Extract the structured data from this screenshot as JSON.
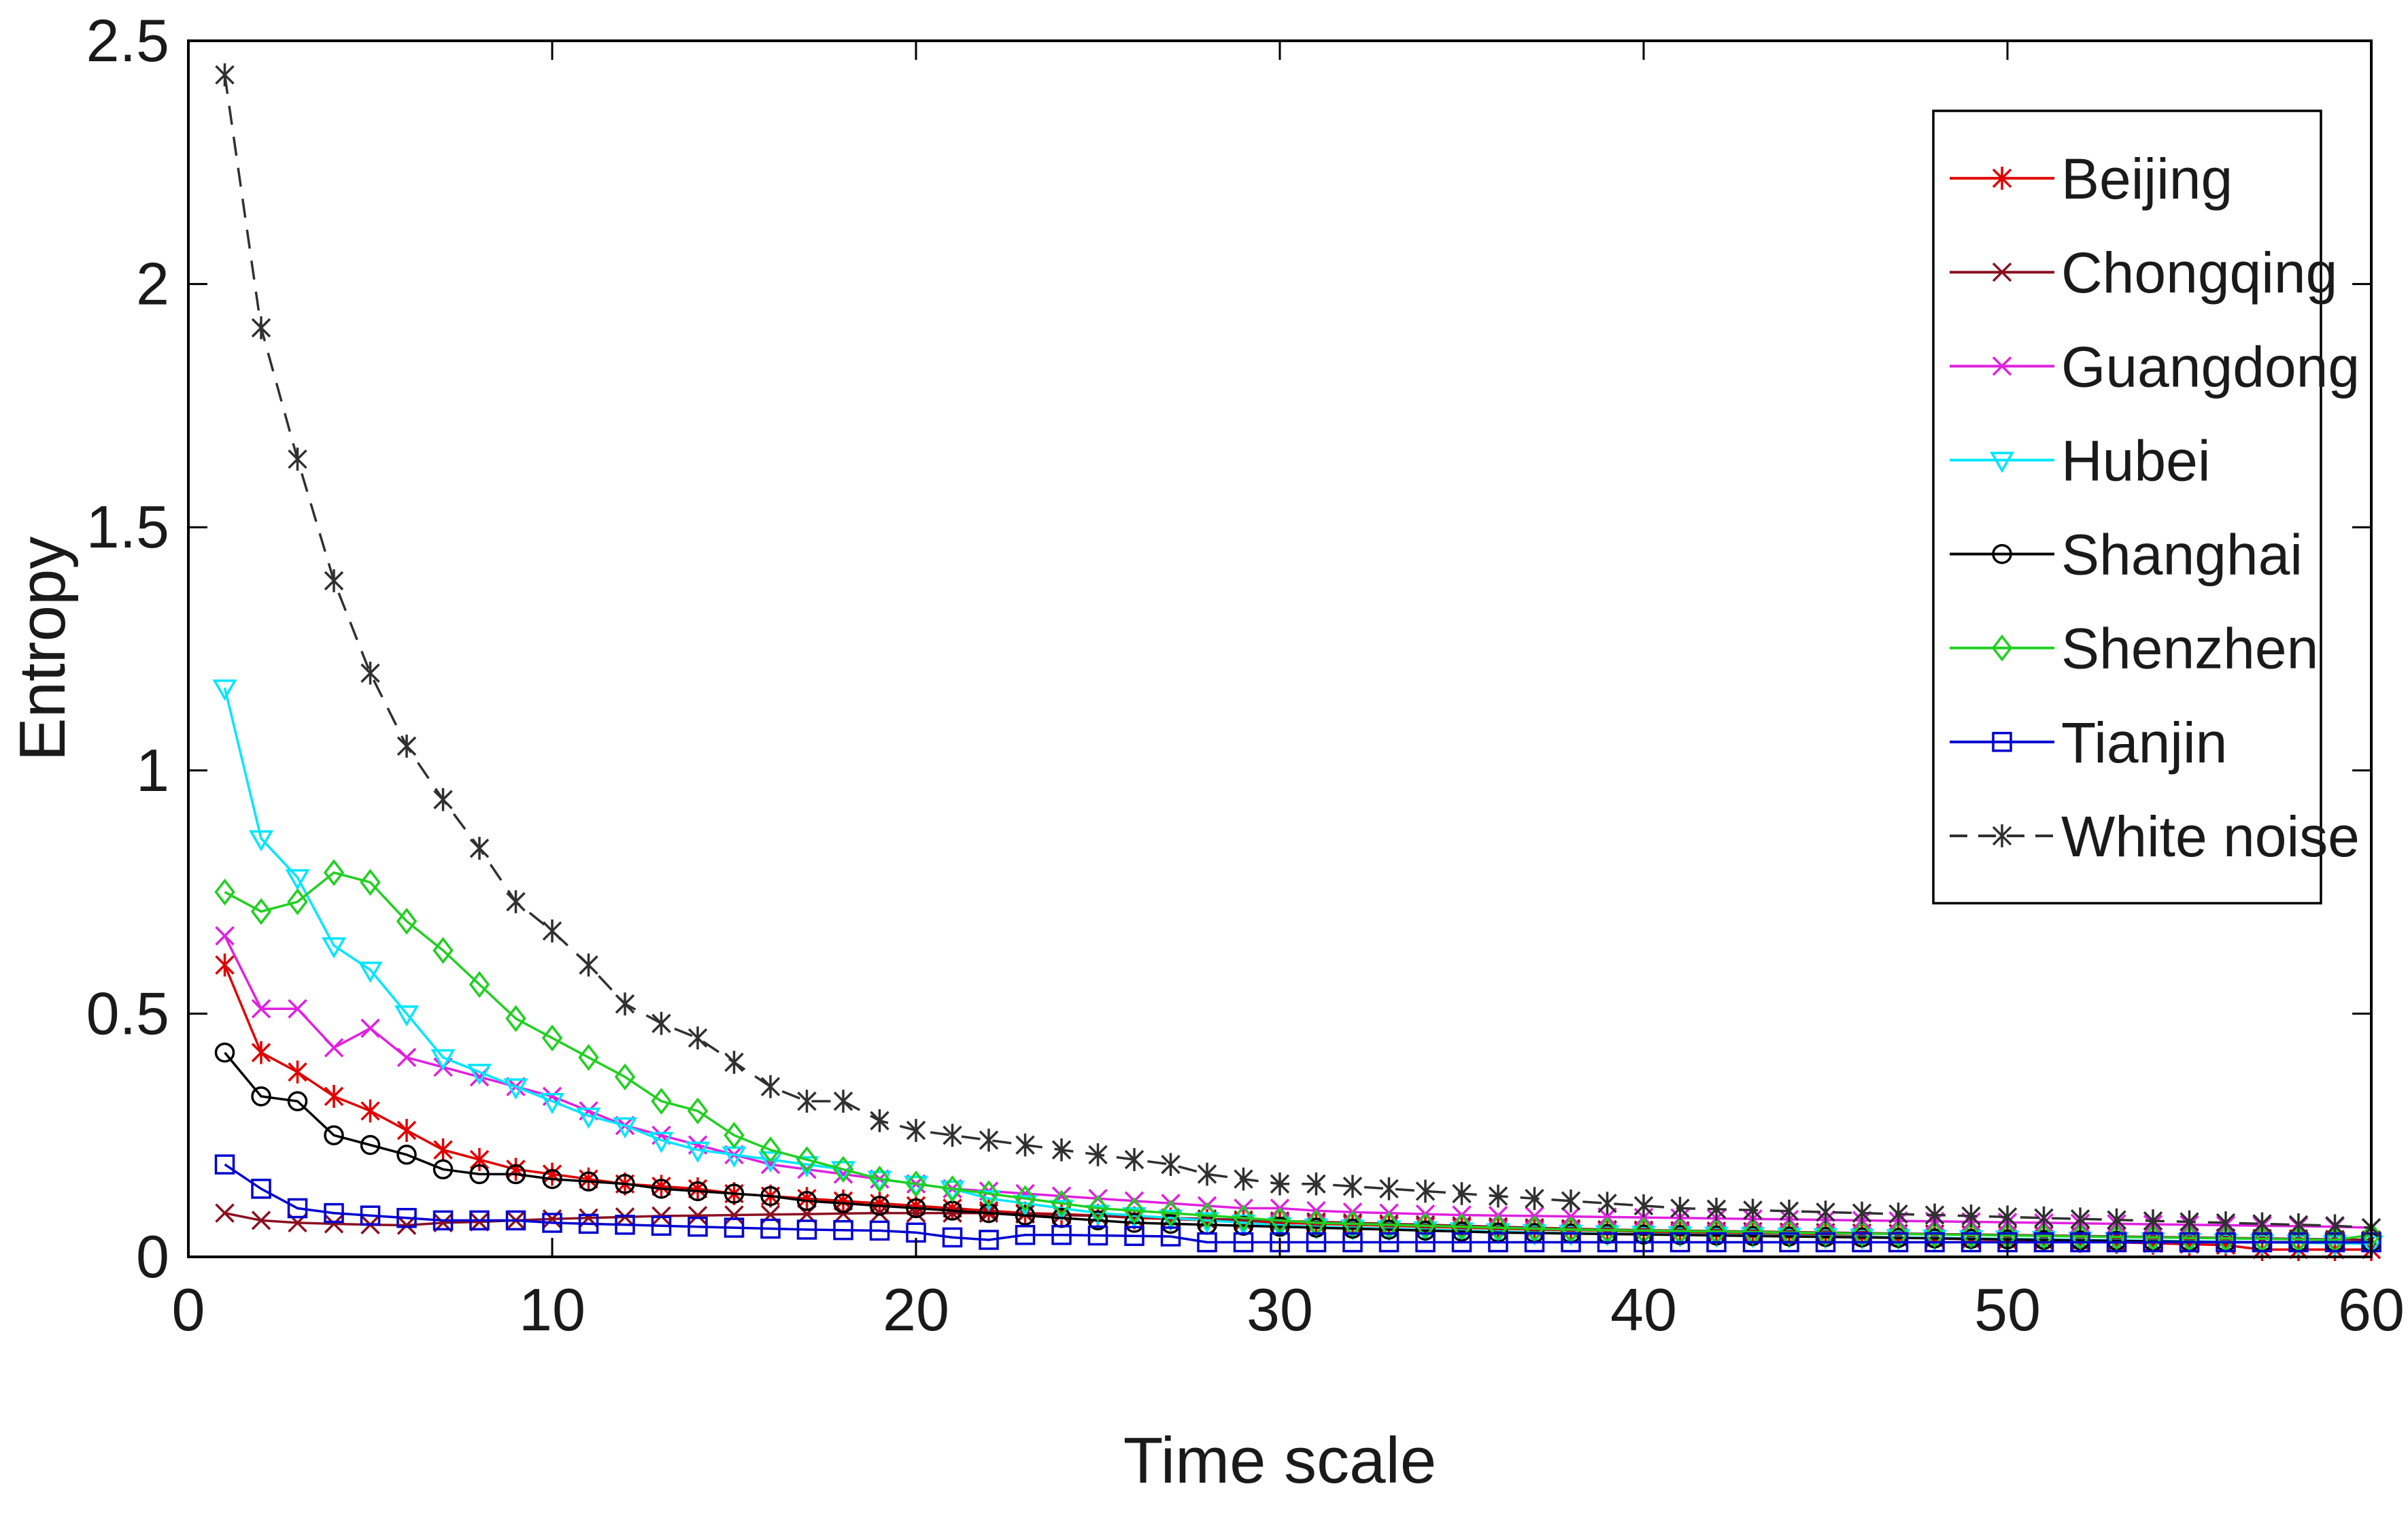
{
  "chart_data": {
    "type": "line",
    "title": "",
    "xlabel": "Time scale",
    "ylabel": "Entropy",
    "xlim": [
      0,
      60
    ],
    "ylim": [
      0,
      2.5
    ],
    "xticks": [
      0,
      10,
      20,
      30,
      40,
      50,
      60
    ],
    "yticks": [
      0,
      0.5,
      1,
      1.5,
      2,
      2.5
    ],
    "xtick_labels": [
      "0",
      "10",
      "20",
      "30",
      "40",
      "50",
      "60"
    ],
    "ytick_labels": [
      "0",
      "0.5",
      "1",
      "1.5",
      "2",
      "2.5"
    ],
    "grid": false,
    "legend_position": "top-right",
    "x": [
      1,
      2,
      3,
      4,
      5,
      6,
      7,
      8,
      9,
      10,
      11,
      12,
      13,
      14,
      15,
      16,
      17,
      18,
      19,
      20,
      21,
      22,
      23,
      24,
      25,
      26,
      27,
      28,
      29,
      30,
      31,
      32,
      33,
      34,
      35,
      36,
      37,
      38,
      39,
      40,
      41,
      42,
      43,
      44,
      45,
      46,
      47,
      48,
      49,
      50,
      51,
      52,
      53,
      54,
      55,
      56,
      57,
      58,
      59,
      60
    ],
    "series": [
      {
        "name": "Beijing",
        "color": "#e00000",
        "marker": "asterisk",
        "dashed": false,
        "values": [
          0.6,
          0.42,
          0.38,
          0.33,
          0.3,
          0.26,
          0.22,
          0.2,
          0.18,
          0.17,
          0.16,
          0.15,
          0.145,
          0.14,
          0.13,
          0.125,
          0.12,
          0.115,
          0.11,
          0.105,
          0.1,
          0.095,
          0.09,
          0.088,
          0.085,
          0.08,
          0.078,
          0.075,
          0.072,
          0.07,
          0.068,
          0.066,
          0.064,
          0.062,
          0.06,
          0.058,
          0.056,
          0.055,
          0.054,
          0.052,
          0.05,
          0.048,
          0.046,
          0.045,
          0.044,
          0.042,
          0.04,
          0.038,
          0.036,
          0.035,
          0.034,
          0.032,
          0.03,
          0.028,
          0.026,
          0.024,
          0.015,
          0.015,
          0.015,
          0.015
        ]
      },
      {
        "name": "Chongqing",
        "color": "#8b1020",
        "marker": "x",
        "dashed": false,
        "values": [
          0.09,
          0.075,
          0.07,
          0.068,
          0.066,
          0.065,
          0.07,
          0.072,
          0.075,
          0.078,
          0.08,
          0.082,
          0.084,
          0.085,
          0.086,
          0.087,
          0.088,
          0.089,
          0.09,
          0.09,
          0.09,
          0.09,
          0.088,
          0.086,
          0.084,
          0.082,
          0.08,
          0.078,
          0.076,
          0.074,
          0.072,
          0.07,
          0.068,
          0.066,
          0.064,
          0.062,
          0.06,
          0.058,
          0.056,
          0.055,
          0.054,
          0.053,
          0.052,
          0.051,
          0.05,
          0.049,
          0.048,
          0.047,
          0.046,
          0.045,
          0.044,
          0.043,
          0.042,
          0.041,
          0.04,
          0.039,
          0.038,
          0.037,
          0.036,
          0.035
        ]
      },
      {
        "name": "Guangdong",
        "color": "#e020e0",
        "marker": "x",
        "dashed": false,
        "values": [
          0.66,
          0.51,
          0.51,
          0.43,
          0.47,
          0.41,
          0.39,
          0.37,
          0.35,
          0.33,
          0.3,
          0.27,
          0.25,
          0.23,
          0.21,
          0.19,
          0.18,
          0.17,
          0.16,
          0.15,
          0.14,
          0.135,
          0.13,
          0.125,
          0.12,
          0.115,
          0.11,
          0.105,
          0.1,
          0.1,
          0.095,
          0.092,
          0.09,
          0.088,
          0.086,
          0.085,
          0.084,
          0.083,
          0.082,
          0.081,
          0.08,
          0.079,
          0.078,
          0.077,
          0.076,
          0.075,
          0.074,
          0.073,
          0.072,
          0.071,
          0.07,
          0.069,
          0.068,
          0.067,
          0.066,
          0.065,
          0.064,
          0.063,
          0.062,
          0.06
        ]
      },
      {
        "name": "Hubei",
        "color": "#00e5ff",
        "marker": "triangle-down",
        "dashed": false,
        "values": [
          1.17,
          0.86,
          0.78,
          0.64,
          0.59,
          0.5,
          0.41,
          0.38,
          0.35,
          0.32,
          0.29,
          0.27,
          0.24,
          0.22,
          0.21,
          0.2,
          0.19,
          0.18,
          0.16,
          0.15,
          0.14,
          0.12,
          0.11,
          0.1,
          0.09,
          0.085,
          0.08,
          0.075,
          0.07,
          0.065,
          0.062,
          0.06,
          0.058,
          0.056,
          0.054,
          0.052,
          0.05,
          0.049,
          0.048,
          0.047,
          0.046,
          0.045,
          0.044,
          0.043,
          0.042,
          0.041,
          0.04,
          0.039,
          0.038,
          0.037,
          0.036,
          0.035,
          0.034,
          0.033,
          0.032,
          0.031,
          0.03,
          0.029,
          0.028,
          0.027
        ]
      },
      {
        "name": "Shanghai",
        "color": "#000000",
        "marker": "circle",
        "dashed": false,
        "values": [
          0.42,
          0.33,
          0.32,
          0.25,
          0.23,
          0.21,
          0.18,
          0.17,
          0.17,
          0.16,
          0.155,
          0.15,
          0.14,
          0.135,
          0.13,
          0.125,
          0.115,
          0.11,
          0.105,
          0.1,
          0.095,
          0.09,
          0.085,
          0.08,
          0.075,
          0.07,
          0.068,
          0.066,
          0.064,
          0.062,
          0.06,
          0.058,
          0.056,
          0.054,
          0.052,
          0.05,
          0.049,
          0.048,
          0.047,
          0.046,
          0.045,
          0.044,
          0.043,
          0.042,
          0.041,
          0.04,
          0.039,
          0.038,
          0.037,
          0.036,
          0.035,
          0.034,
          0.033,
          0.032,
          0.031,
          0.03,
          0.03,
          0.03,
          0.03,
          0.03
        ]
      },
      {
        "name": "Shenzhen",
        "color": "#20d020",
        "marker": "diamond",
        "dashed": false,
        "values": [
          0.75,
          0.71,
          0.73,
          0.79,
          0.77,
          0.69,
          0.63,
          0.56,
          0.49,
          0.45,
          0.41,
          0.37,
          0.32,
          0.3,
          0.25,
          0.22,
          0.2,
          0.18,
          0.16,
          0.15,
          0.14,
          0.13,
          0.12,
          0.11,
          0.1,
          0.095,
          0.09,
          0.085,
          0.08,
          0.075,
          0.07,
          0.068,
          0.066,
          0.064,
          0.062,
          0.06,
          0.058,
          0.056,
          0.055,
          0.054,
          0.053,
          0.052,
          0.051,
          0.05,
          0.049,
          0.048,
          0.047,
          0.046,
          0.045,
          0.044,
          0.043,
          0.042,
          0.041,
          0.04,
          0.039,
          0.038,
          0.037,
          0.036,
          0.035,
          0.045
        ]
      },
      {
        "name": "Tianjin",
        "color": "#0000d0",
        "marker": "square",
        "dashed": false,
        "values": [
          0.19,
          0.14,
          0.1,
          0.09,
          0.085,
          0.08,
          0.075,
          0.075,
          0.075,
          0.07,
          0.068,
          0.066,
          0.064,
          0.062,
          0.06,
          0.058,
          0.056,
          0.055,
          0.054,
          0.05,
          0.04,
          0.035,
          0.045,
          0.045,
          0.044,
          0.043,
          0.042,
          0.03,
          0.03,
          0.03,
          0.03,
          0.03,
          0.03,
          0.03,
          0.03,
          0.03,
          0.03,
          0.03,
          0.03,
          0.03,
          0.03,
          0.03,
          0.03,
          0.03,
          0.03,
          0.03,
          0.03,
          0.03,
          0.03,
          0.03,
          0.03,
          0.03,
          0.03,
          0.03,
          0.03,
          0.03,
          0.03,
          0.03,
          0.03,
          0.03
        ]
      },
      {
        "name": "White noise",
        "color": "#303030",
        "marker": "asterisk",
        "dashed": true,
        "values": [
          2.43,
          1.91,
          1.64,
          1.39,
          1.2,
          1.05,
          0.94,
          0.84,
          0.73,
          0.67,
          0.6,
          0.52,
          0.48,
          0.45,
          0.4,
          0.35,
          0.32,
          0.32,
          0.28,
          0.26,
          0.25,
          0.24,
          0.23,
          0.22,
          0.21,
          0.2,
          0.19,
          0.17,
          0.16,
          0.15,
          0.15,
          0.145,
          0.14,
          0.135,
          0.13,
          0.125,
          0.12,
          0.115,
          0.11,
          0.105,
          0.1,
          0.098,
          0.096,
          0.094,
          0.092,
          0.09,
          0.088,
          0.086,
          0.084,
          0.082,
          0.08,
          0.078,
          0.076,
          0.074,
          0.072,
          0.07,
          0.068,
          0.066,
          0.064,
          0.06
        ]
      }
    ]
  }
}
